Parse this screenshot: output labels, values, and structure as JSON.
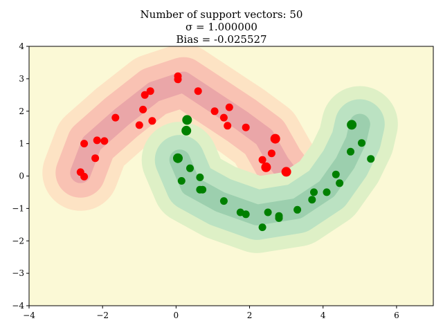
{
  "chart_data": {
    "type": "scatter",
    "title_lines": [
      "Number of support vectors: 50",
      "σ = 1.000000",
      "Bias = -0.025527"
    ],
    "xlabel": "",
    "ylabel": "",
    "xlim": [
      -4,
      7
    ],
    "ylim": [
      -4,
      4
    ],
    "xticks": [
      -4,
      -2,
      0,
      2,
      4,
      6
    ],
    "yticks": [
      -4,
      -3,
      -2,
      -1,
      0,
      1,
      2,
      3,
      4
    ],
    "grid": false,
    "colors": {
      "background": "#fbf9d6",
      "red_outer": "#fde3c4",
      "red_mid": "#f9c2b3",
      "red_inner": "#eaa6a8",
      "green_outer": "#def0c6",
      "green_mid": "#bbe2c2",
      "green_inner": "#9ccfae",
      "red_point": "#ff0000",
      "green_point": "#008000"
    },
    "series": [
      {
        "color": "#ff0000",
        "points": [
          [
            -2.5,
            1.0
          ],
          [
            -2.2,
            0.55
          ],
          [
            -2.15,
            1.1
          ],
          [
            -1.95,
            1.08
          ],
          [
            -1.65,
            1.8
          ],
          [
            -2.6,
            0.12
          ],
          [
            -2.5,
            -0.02
          ],
          [
            -1.0,
            1.57
          ],
          [
            -0.9,
            2.05
          ],
          [
            -0.85,
            2.5
          ],
          [
            -0.7,
            2.62
          ],
          [
            -0.65,
            1.7
          ],
          [
            0.05,
            3.08
          ],
          [
            0.05,
            2.98
          ],
          [
            0.6,
            2.62
          ],
          [
            1.05,
            2.0
          ],
          [
            1.3,
            1.8
          ],
          [
            1.4,
            1.55
          ],
          [
            1.45,
            2.12
          ],
          [
            1.9,
            1.5
          ],
          [
            2.35,
            0.5
          ],
          [
            2.45,
            0.27
          ],
          [
            2.6,
            0.7
          ],
          [
            2.7,
            1.15
          ],
          [
            3.0,
            0.13
          ]
        ]
      },
      {
        "color": "#008000",
        "points": [
          [
            0.05,
            0.55
          ],
          [
            0.3,
            1.73
          ],
          [
            0.28,
            1.4
          ],
          [
            0.15,
            -0.15
          ],
          [
            0.38,
            0.24
          ],
          [
            0.65,
            -0.04
          ],
          [
            0.65,
            -0.42
          ],
          [
            0.72,
            -0.42
          ],
          [
            1.3,
            -0.77
          ],
          [
            1.75,
            -1.12
          ],
          [
            1.9,
            -1.18
          ],
          [
            2.35,
            -1.58
          ],
          [
            2.5,
            -1.12
          ],
          [
            2.8,
            -1.23
          ],
          [
            2.8,
            -1.3
          ],
          [
            3.3,
            -1.04
          ],
          [
            3.7,
            -0.73
          ],
          [
            3.75,
            -0.5
          ],
          [
            4.1,
            -0.5
          ],
          [
            4.35,
            0.05
          ],
          [
            4.45,
            -0.22
          ],
          [
            4.75,
            0.75
          ],
          [
            4.78,
            1.58
          ],
          [
            5.05,
            1.02
          ],
          [
            5.3,
            0.53
          ]
        ]
      }
    ],
    "large_points": [
      [
        0.3,
        1.73
      ],
      [
        0.28,
        1.4
      ],
      [
        0.05,
        0.55
      ],
      [
        2.45,
        0.27
      ],
      [
        3.0,
        0.13
      ],
      [
        2.7,
        1.15
      ],
      [
        4.78,
        1.58
      ]
    ]
  }
}
